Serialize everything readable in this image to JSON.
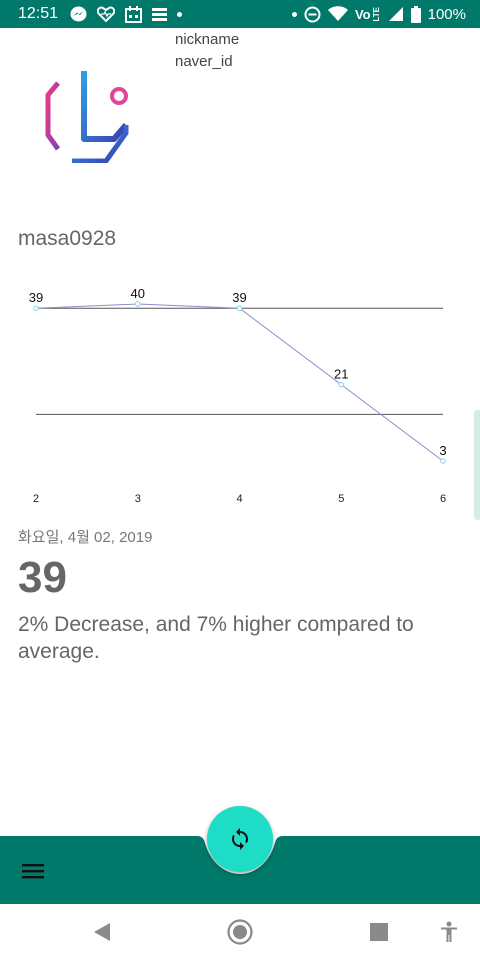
{
  "status_bar": {
    "time": "12:51",
    "left_icons": [
      "messenger-icon",
      "heart-icon",
      "calendar-icon",
      "stack-icon",
      "dot-icon"
    ],
    "right_icons": [
      "dot-icon",
      "do-not-disturb-icon",
      "wifi-icon",
      "volte-icon",
      "signal-icon",
      "battery-icon"
    ],
    "volte_label": "Vo",
    "lte_label": "LTE",
    "battery": "100%"
  },
  "header": {
    "nickname_label": "nickname",
    "naver_id_label": "naver_id"
  },
  "profile": {
    "username": "masa0928"
  },
  "chart_data": {
    "type": "line",
    "x": [
      2,
      3,
      4,
      5,
      6
    ],
    "values": [
      39,
      40,
      39,
      21,
      3
    ],
    "tick_labels": [
      "2",
      "3",
      "4",
      "5",
      "6"
    ],
    "data_labels": [
      "39",
      "40",
      "39",
      "21",
      "3"
    ],
    "limit_lines": [
      39,
      14
    ],
    "ylim": [
      3,
      40
    ],
    "line_color": "#8c8ccf",
    "point_color": "#7fd8e6",
    "limit_line_color": "#555555"
  },
  "info": {
    "date": "화요일, 4월 02, 2019",
    "value": "39",
    "comparison": "2% Decrease, and 7% higher compared to average."
  },
  "bottom_bar": {
    "menu_icon": "hamburger-menu-icon",
    "fab_icon": "refresh-icon",
    "bar_color": "#00796b",
    "fab_color": "#1fdcc6"
  },
  "nav_bar": {
    "buttons": [
      "back-icon",
      "home-icon",
      "recents-icon",
      "accessibility-icon"
    ]
  }
}
